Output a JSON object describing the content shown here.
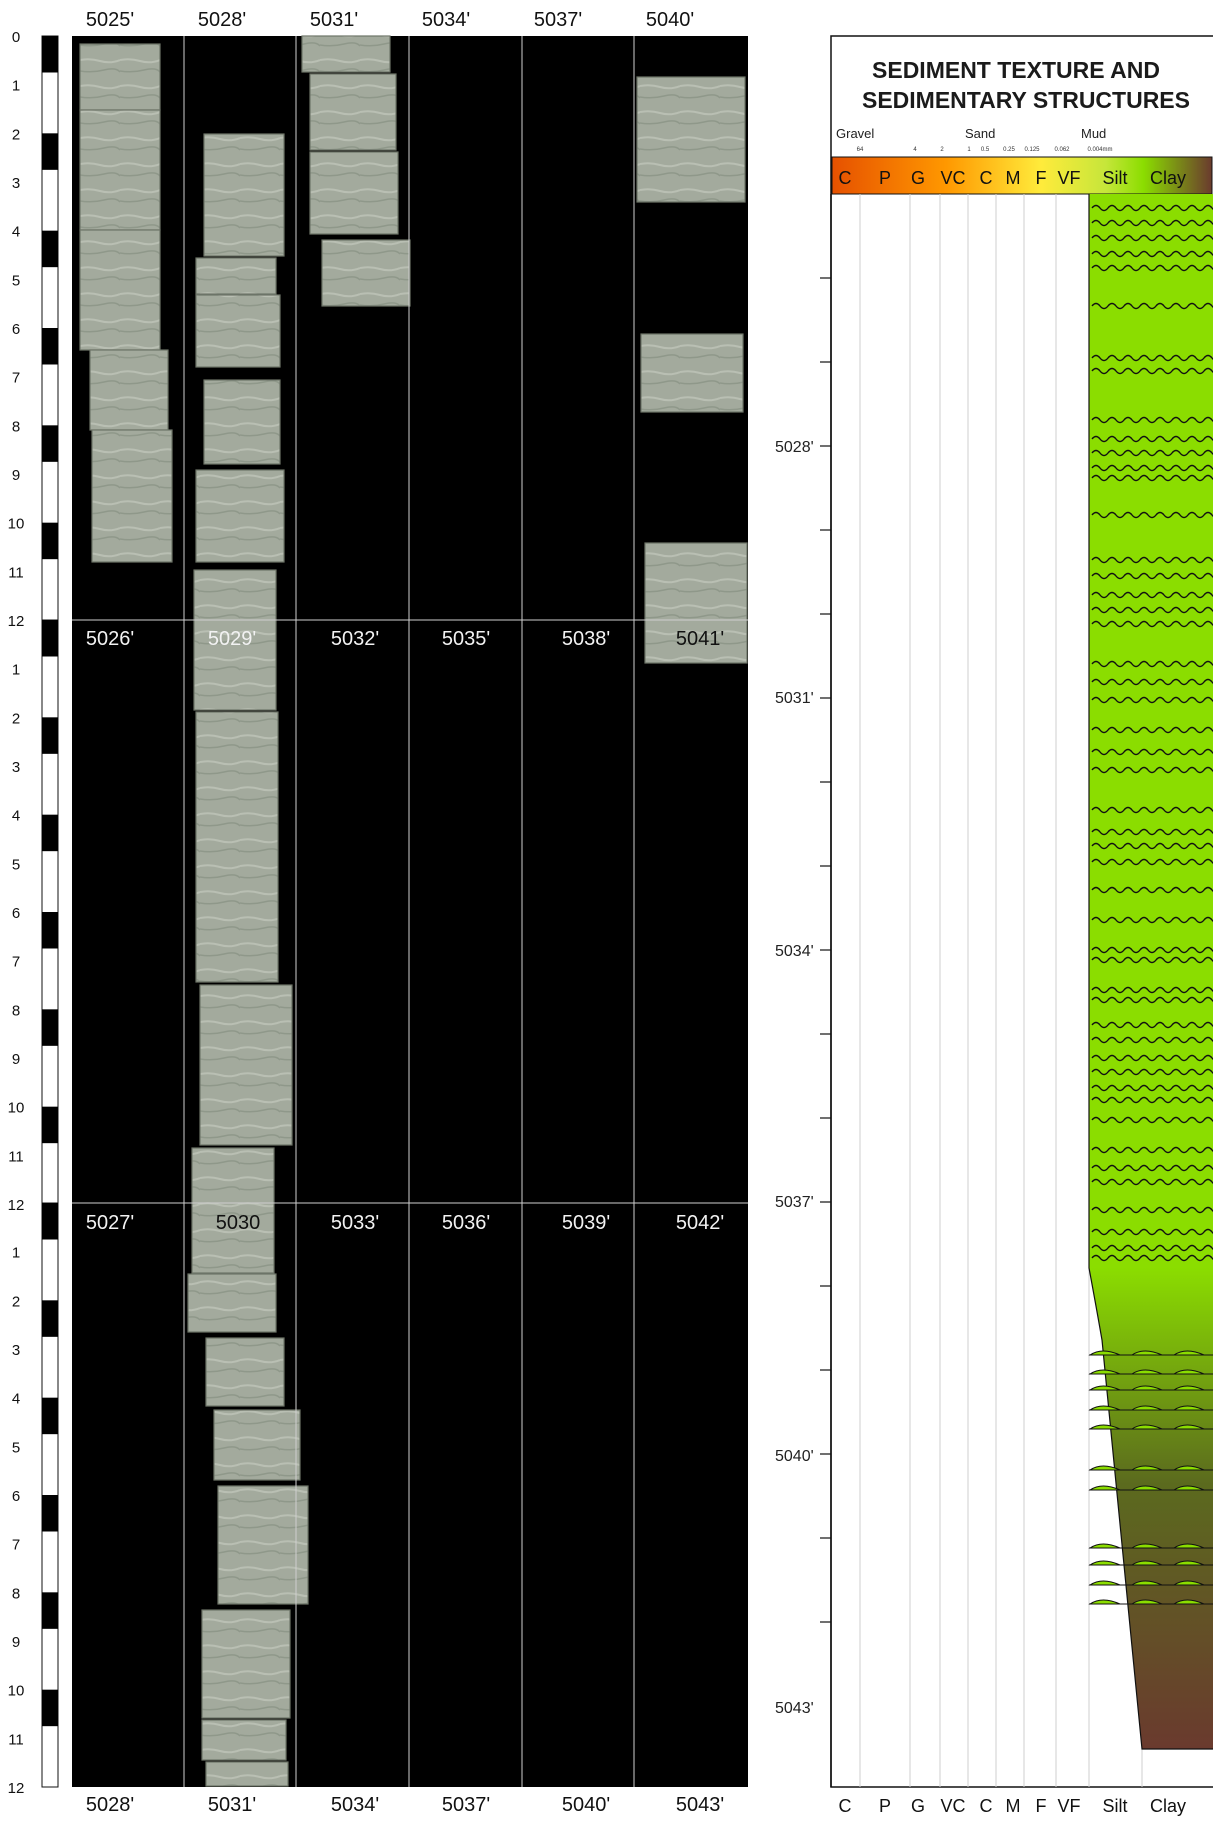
{
  "core_photo": {
    "inch_scale_labels": [
      "0",
      "1",
      "2",
      "3",
      "4",
      "5",
      "6",
      "7",
      "8",
      "9",
      "10",
      "11",
      "12"
    ],
    "column_depth_labels": {
      "row1_top": [
        "5025'",
        "5028'",
        "5031'",
        "5034'",
        "5037'",
        "5040'"
      ],
      "row2_top": [
        "5026'",
        "5029'",
        "5032'",
        "5035'",
        "5038'",
        "5041'"
      ],
      "row3_top": [
        "5027'",
        "5030",
        "5033'",
        "5036'",
        "5039'",
        "5042'"
      ],
      "bottom": [
        "5028'",
        "5031'",
        "5034'",
        "5037'",
        "5040'",
        "5043'"
      ]
    },
    "colors": {
      "background": "#000000",
      "core": "#a4ab9e",
      "core_dark": "#8e9789"
    }
  },
  "sed_log": {
    "title_line1": "SEDIMENT TEXTURE AND",
    "title_line2": "SEDIMENTARY STRUCTURES",
    "class_groups": [
      "Gravel",
      "Sand",
      "Mud"
    ],
    "grain_sizes_mm": [
      "64",
      "4",
      "2",
      "1",
      "0.5",
      "0.25",
      "0.125",
      "0.062",
      "0.004mm"
    ],
    "grain_classes": [
      "C",
      "P",
      "G",
      "VC",
      "C",
      "M",
      "F",
      "VF",
      "Silt",
      "Clay"
    ],
    "depth_labels": [
      "5028'",
      "5031'",
      "5034'",
      "5037'",
      "5040'",
      "5043'"
    ],
    "colors": {
      "silt_green": "#8bdd00",
      "clay_brown": "#6a3a2e",
      "mixed_olive": "#5b6a1e"
    }
  }
}
